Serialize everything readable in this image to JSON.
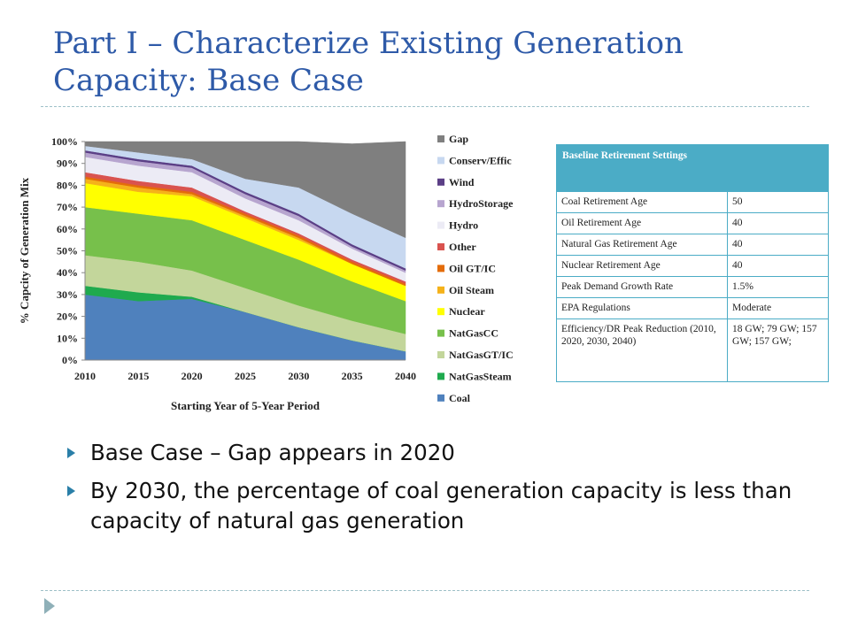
{
  "slide": {
    "title": "Part I – Characterize Existing Generation Capacity: Base Case",
    "bullets": [
      "Base Case – Gap appears in 2020",
      "By 2030, the percentage of coal generation capacity is less than capacity of natural gas generation"
    ]
  },
  "table": {
    "header": "Baseline Retirement Settings",
    "rows": [
      {
        "label": "Coal Retirement Age",
        "value": "50"
      },
      {
        "label": "Oil Retirement Age",
        "value": "40"
      },
      {
        "label": "Natural Gas Retirement Age",
        "value": "40"
      },
      {
        "label": "Nuclear Retirement Age",
        "value": "40"
      },
      {
        "label": "Peak Demand Growth Rate",
        "value": "1.5%"
      },
      {
        "label": "EPA Regulations",
        "value": "Moderate"
      },
      {
        "label": "Efficiency/DR Peak Reduction (2010, 2020, 2030, 2040)",
        "value": "18 GW; 79 GW; 157 GW; 157 GW;"
      }
    ]
  },
  "chart_data": {
    "type": "area",
    "stacked": true,
    "xlabel": "Starting Year of 5-Year Period",
    "ylabel": "% Capcity of Generation Mix",
    "x": [
      "2010",
      "2015",
      "2020",
      "2025",
      "2030",
      "2035",
      "2040"
    ],
    "ylim": [
      0,
      100
    ],
    "yticks": [
      "0%",
      "10%",
      "20%",
      "30%",
      "40%",
      "50%",
      "60%",
      "70%",
      "80%",
      "90%",
      "100%"
    ],
    "legend_position": "right",
    "series": [
      {
        "name": "Coal",
        "color": "#4f81bd",
        "values": [
          30,
          27,
          28,
          22,
          15,
          9,
          4
        ]
      },
      {
        "name": "NatGasSteam",
        "color": "#1faa4e",
        "values": [
          4,
          4,
          1,
          0,
          0,
          0,
          0
        ]
      },
      {
        "name": "NatGasGT/IC",
        "color": "#c3d69b",
        "values": [
          14,
          14,
          12,
          11,
          10,
          9,
          8
        ]
      },
      {
        "name": "NatGasCC",
        "color": "#77c04b",
        "values": [
          22,
          22,
          23,
          22,
          21,
          18,
          15
        ]
      },
      {
        "name": "Nuclear",
        "color": "#ffff00",
        "values": [
          11,
          10,
          11,
          10,
          9,
          8,
          7
        ]
      },
      {
        "name": "Oil Steam",
        "color": "#f5b21a",
        "values": [
          2,
          2,
          1,
          1,
          1,
          0,
          0
        ]
      },
      {
        "name": "Oil GT/IC",
        "color": "#e46c0a",
        "values": [
          1,
          1,
          1,
          1,
          1,
          1,
          1
        ]
      },
      {
        "name": "Other",
        "color": "#d9534f",
        "values": [
          2,
          2,
          2,
          1,
          1,
          1,
          1
        ]
      },
      {
        "name": "Hydro",
        "color": "#ecebf5",
        "values": [
          7,
          7,
          7,
          6,
          6,
          5,
          4
        ]
      },
      {
        "name": "HydroStorage",
        "color": "#b7a5cf",
        "values": [
          2,
          2,
          2,
          2,
          2,
          1,
          1
        ]
      },
      {
        "name": "Wind",
        "color": "#5b3f86",
        "values": [
          1,
          1,
          1,
          1,
          1,
          1,
          1
        ]
      },
      {
        "name": "Conserv/Effic",
        "color": "#c7d8f0",
        "values": [
          2,
          3,
          3,
          6,
          12,
          14,
          14
        ]
      },
      {
        "name": "Gap",
        "color": "#7f7f7f",
        "values": [
          2,
          5,
          8,
          17,
          21,
          32,
          44
        ]
      }
    ]
  }
}
